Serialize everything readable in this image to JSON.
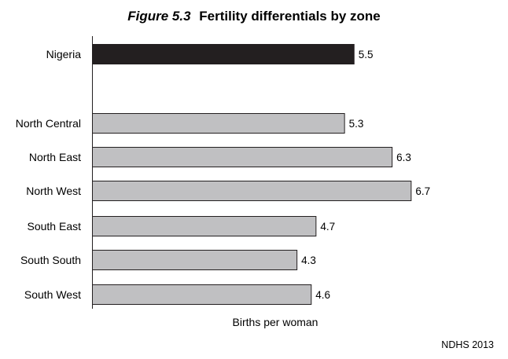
{
  "figure": {
    "number": "Figure 5.3",
    "title": "Fertility differentials by zone",
    "source": "NDHS 2013"
  },
  "chart_data": {
    "type": "bar",
    "orientation": "horizontal",
    "categories": [
      "Nigeria",
      "North Central",
      "North East",
      "North West",
      "South East",
      "South South",
      "South West"
    ],
    "values": [
      5.5,
      5.3,
      6.3,
      6.7,
      4.7,
      4.3,
      4.6
    ],
    "value_labels": [
      "5.5",
      "5.3",
      "6.3",
      "6.7",
      "4.7",
      "4.3",
      "4.6"
    ],
    "highlight": "Nigeria",
    "xlabel": "Births per woman",
    "ylabel": "",
    "xlim": [
      0,
      10
    ],
    "grid": false,
    "colors": {
      "highlight": "#231f20",
      "bar": "#c0c0c2",
      "bar_edge": "#231f20"
    }
  }
}
